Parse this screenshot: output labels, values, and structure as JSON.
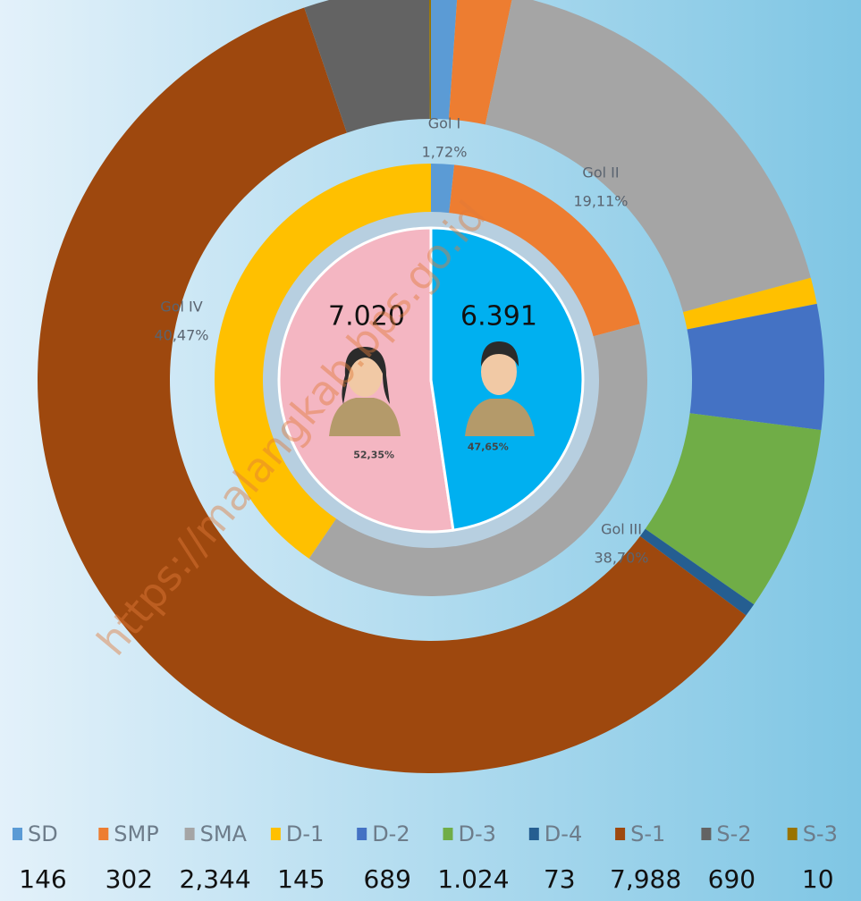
{
  "watermark": "https://malangkab.bps.go.id",
  "chart_data": [
    {
      "type": "donut",
      "categories": [
        "SD",
        "SMP",
        "SMA",
        "D-1",
        "D-2",
        "D-3",
        "D-4",
        "S-1",
        "S-2",
        "S-3"
      ],
      "values": [
        146,
        302,
        2344,
        145,
        689,
        1024,
        73,
        7988,
        690,
        10
      ],
      "value_labels": [
        "146",
        "302",
        "2,344",
        "145",
        "689",
        "1.024",
        "73",
        "7,988",
        "690",
        "10"
      ],
      "colors": [
        "#5b9bd5",
        "#ed7d31",
        "#a5a5a5",
        "#ffc000",
        "#4472c4",
        "#70ad47",
        "#255e91",
        "#9e480e",
        "#636363",
        "#997300"
      ],
      "legend": "bottom"
    },
    {
      "type": "donut",
      "categories": [
        "Gol I",
        "Gol II",
        "Gol III",
        "Gol IV"
      ],
      "values": [
        1.72,
        19.11,
        38.7,
        40.47
      ],
      "value_labels": [
        "1,72%",
        "19,11%",
        "38,70%",
        "40,47%"
      ],
      "colors": [
        "#5b9bd5",
        "#ed7d31",
        "#a5a5a5",
        "#ffc000"
      ]
    },
    {
      "type": "pie",
      "values": [
        7020,
        6391
      ],
      "value_labels": [
        "7.020",
        "6.391"
      ],
      "percents": [
        52.35,
        47.65
      ],
      "percent_labels": [
        "52,35%",
        "47,65%"
      ],
      "colors": [
        "#f4b6c2",
        "#00b0f0"
      ]
    }
  ]
}
